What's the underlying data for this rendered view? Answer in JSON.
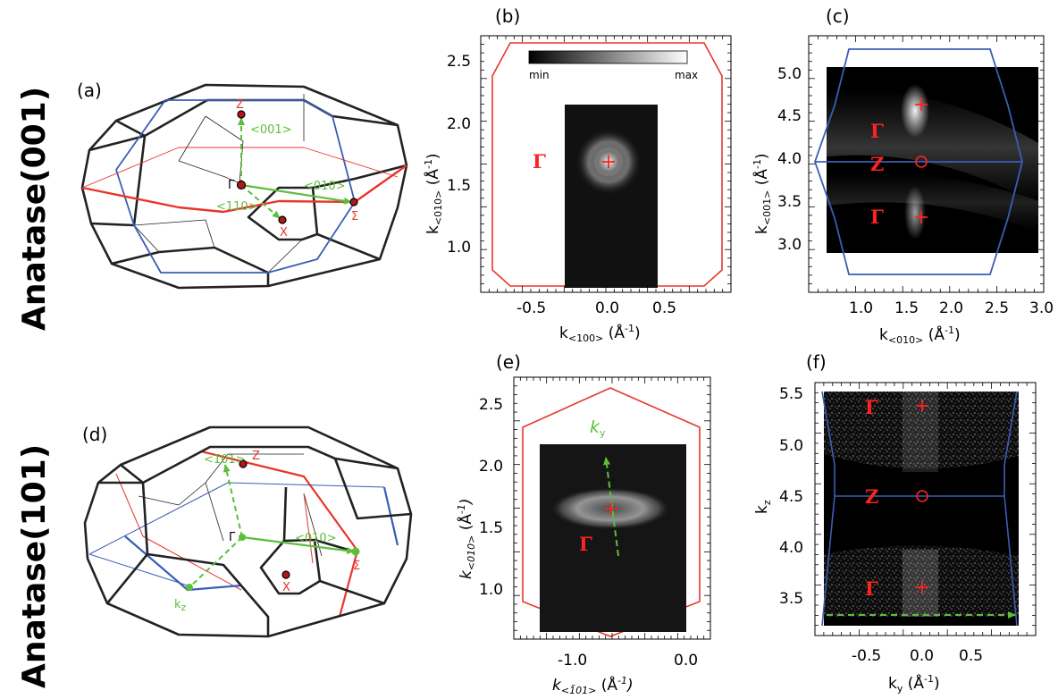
{
  "side_labels": {
    "top": "Anatase(001)",
    "bottom": "Anatase(101)"
  },
  "panel_labels": {
    "a": "(a)",
    "b": "(b)",
    "c": "(c)",
    "d": "(d)",
    "e": "(e)",
    "f": "(f)"
  },
  "colors": {
    "zone_red": "#e8362b",
    "zone_blue": "#3a5db5",
    "vector_green": "#5bbf3a",
    "marker_red": "#ff2222"
  },
  "bz_a": {
    "Z": "Z",
    "Gamma": "Γ",
    "X": "X",
    "Sigma": "Σ",
    "v001": "<001>",
    "v010": "<010>",
    "v110": "<110>"
  },
  "bz_d": {
    "Z": "Z",
    "Gamma": "Γ",
    "X": "X",
    "Sigma": "Σ",
    "v101": "<1̄01>",
    "v010": "<010>",
    "kz": "k",
    "kz_sub": "z"
  },
  "panel_b": {
    "xticks": [
      "-0.5",
      "0.0",
      "0.5"
    ],
    "yticks": [
      "2.5",
      "2.0",
      "1.5",
      "1.0"
    ],
    "colorbar_min": "min",
    "colorbar_max": "max",
    "gamma": "Γ",
    "xlabel": "k",
    "xlabel_sub": "<100>",
    "xlabel_unit": " (Å",
    "xlabel_exp": "-1",
    "xlabel_close": ")",
    "ylabel": "k",
    "ylabel_sub": "<010>",
    "ylabel_unit": " (Å",
    "ylabel_exp": "-1",
    "ylabel_close": ")"
  },
  "panel_c": {
    "xticks": [
      "1.0",
      "1.5",
      "2.0",
      "2.5",
      "3.0"
    ],
    "yticks": [
      "5.0",
      "4.5",
      "4.0",
      "3.5",
      "3.0"
    ],
    "gamma_top": "Γ",
    "z": "Z",
    "gamma_bottom": "Γ",
    "xlabel": "k",
    "xlabel_sub": "<010>",
    "xlabel_unit": " (Å",
    "xlabel_exp": "-1",
    "xlabel_close": ")",
    "ylabel": "k",
    "ylabel_sub": "<001>",
    "ylabel_unit": " (Å",
    "ylabel_exp": "-1",
    "ylabel_close": ")"
  },
  "panel_e": {
    "xticks": [
      "-1.0",
      "0.0"
    ],
    "yticks": [
      "2.5",
      "2.0",
      "1.5",
      "1.0"
    ],
    "ky": "k",
    "ky_sub": "y",
    "gamma": "Γ",
    "xlabel": "k",
    "xlabel_sub": "<1̄01>",
    "xlabel_unit": " (Å",
    "xlabel_exp": "-1",
    "xlabel_close": ")",
    "ylabel": "k",
    "ylabel_sub": "<010>",
    "ylabel_unit": " (Å",
    "ylabel_exp": "-1",
    "ylabel_close": ")"
  },
  "panel_f": {
    "xticks": [
      "-0.5",
      "0.0",
      "0.5"
    ],
    "yticks": [
      "5.5",
      "5.0",
      "4.5",
      "4.0",
      "3.5"
    ],
    "gamma_top": "Γ",
    "z": "Z",
    "gamma_bottom": "Γ",
    "xlabel": "k",
    "xlabel_sub": "y",
    "xlabel_unit": " (Å",
    "xlabel_exp": "-1",
    "xlabel_close": ")",
    "ylabel": "k",
    "ylabel_sub": "z"
  }
}
